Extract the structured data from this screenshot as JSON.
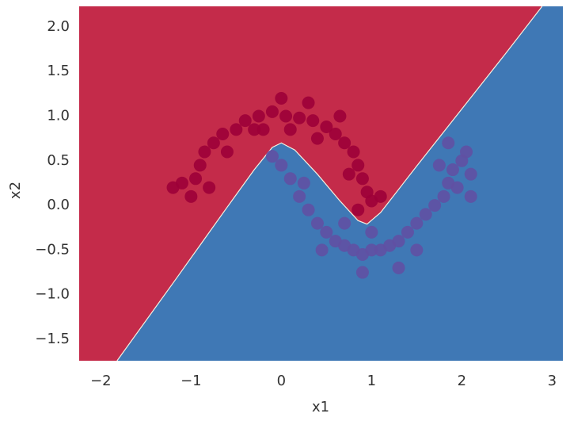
{
  "chart_data": {
    "type": "scatter",
    "xlabel": "x1",
    "ylabel": "x2",
    "xlim": [
      -2.24,
      3.12
    ],
    "ylim": [
      -1.74,
      2.23
    ],
    "xticks": [
      {
        "value": -2,
        "label": "−2"
      },
      {
        "value": -1,
        "label": "−1"
      },
      0,
      1,
      2,
      3
    ],
    "yticks": [
      {
        "value": -1.5,
        "label": "−1.5"
      },
      {
        "value": -1.0,
        "label": "−1.0"
      },
      {
        "value": -0.5,
        "label": "−0.5"
      },
      {
        "value": 0,
        "label": "0.0"
      },
      0.5,
      {
        "value": 1.0,
        "label": "1.0"
      },
      1.5,
      {
        "value": 2.0,
        "label": "2.0"
      }
    ],
    "grid": false,
    "region_colors": [
      "#c42b4a",
      "#3f78b5"
    ],
    "boundary": {
      "x": [
        -1.82,
        -1.2,
        -0.6,
        -0.3,
        -0.1,
        0.0,
        0.15,
        0.4,
        0.65,
        0.85,
        0.95,
        1.1,
        1.5,
        2.0,
        2.5,
        2.89
      ],
      "y": [
        -1.74,
        -0.87,
        -0.02,
        0.4,
        0.65,
        0.7,
        0.62,
        0.35,
        0.05,
        -0.17,
        -0.21,
        -0.08,
        0.44,
        1.08,
        1.72,
        2.23
      ]
    },
    "series": [
      {
        "color": "#9d0038",
        "x": [
          -1.0,
          -0.95,
          -0.9,
          -1.1,
          -0.85,
          -0.75,
          -0.65,
          -0.5,
          -0.4,
          -0.25,
          -0.1,
          0.05,
          0.2,
          0.35,
          0.5,
          0.6,
          0.7,
          0.8,
          0.85,
          0.9,
          0.95,
          1.0,
          -0.2,
          0.1,
          0.4,
          -0.6,
          0.75,
          -0.8,
          1.1,
          0.3,
          0.0,
          -0.3,
          0.65,
          -1.2,
          0.85
        ],
        "y": [
          0.1,
          0.3,
          0.45,
          0.25,
          0.6,
          0.7,
          0.8,
          0.85,
          0.95,
          1.0,
          1.05,
          1.0,
          0.98,
          0.95,
          0.88,
          0.8,
          0.7,
          0.6,
          0.45,
          0.3,
          0.15,
          0.05,
          0.85,
          0.85,
          0.75,
          0.6,
          0.35,
          0.2,
          0.1,
          1.15,
          1.2,
          0.85,
          1.0,
          0.2,
          -0.05
        ]
      },
      {
        "color": "#6050a3",
        "x": [
          0.0,
          -0.1,
          0.1,
          0.2,
          0.3,
          0.4,
          0.5,
          0.6,
          0.7,
          0.8,
          0.9,
          1.0,
          1.1,
          1.2,
          1.3,
          1.4,
          1.5,
          1.6,
          1.7,
          1.8,
          1.85,
          1.9,
          2.0,
          2.1,
          1.95,
          2.05,
          1.75,
          0.9,
          0.7,
          1.3,
          0.25,
          1.5,
          2.1,
          0.45,
          1.0,
          1.85
        ],
        "y": [
          0.45,
          0.55,
          0.3,
          0.1,
          -0.05,
          -0.2,
          -0.3,
          -0.4,
          -0.45,
          -0.5,
          -0.55,
          -0.5,
          -0.5,
          -0.45,
          -0.4,
          -0.3,
          -0.2,
          -0.1,
          0.0,
          0.1,
          0.25,
          0.4,
          0.5,
          0.35,
          0.2,
          0.6,
          0.45,
          -0.75,
          -0.2,
          -0.7,
          0.25,
          -0.5,
          0.1,
          -0.5,
          -0.3,
          0.7
        ]
      }
    ]
  }
}
